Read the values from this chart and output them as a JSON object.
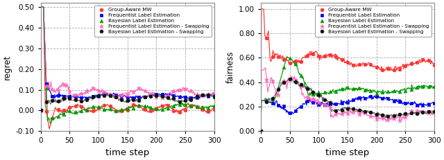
{
  "xlabel": "time step",
  "ylabel_left": "regret",
  "ylabel_right": "fairness",
  "xlim": [
    0,
    300
  ],
  "ylim_left": [
    -0.1,
    0.52
  ],
  "ylim_right": [
    0.0,
    1.05
  ],
  "yticks_left": [
    -0.1,
    0.0,
    0.1,
    0.2,
    0.3,
    0.4,
    0.5
  ],
  "yticks_right": [
    0.0,
    0.2,
    0.4,
    0.6,
    0.8,
    1.0
  ],
  "xticks": [
    0,
    50,
    100,
    150,
    200,
    250,
    300
  ],
  "colors": {
    "group_aware": "#FF3333",
    "frequentist": "#0000EE",
    "bayesian": "#009900",
    "freq_swap": "#FF66BB",
    "bayes_swap": "#666666"
  },
  "legend_labels": [
    "Group-Aware MW",
    "Frequentist Label Estimation",
    "Bayesian Label Estimation",
    "Frequentist Label Estimation - Swapping",
    "Bayesian Label Estimation - Swapping"
  ],
  "marker_styles": [
    "o",
    "s",
    "^",
    "*",
    "o"
  ],
  "marker_colors_edge": [
    "#FF3333",
    "#0000EE",
    "#009900",
    "#FF66BB",
    "#111111"
  ],
  "marker_colors_face": [
    "#FF3333",
    "#0000EE",
    "#009900",
    "#FF66BB",
    "#111111"
  ],
  "background_color": "#ffffff",
  "grid_color": "#bbbbbb"
}
